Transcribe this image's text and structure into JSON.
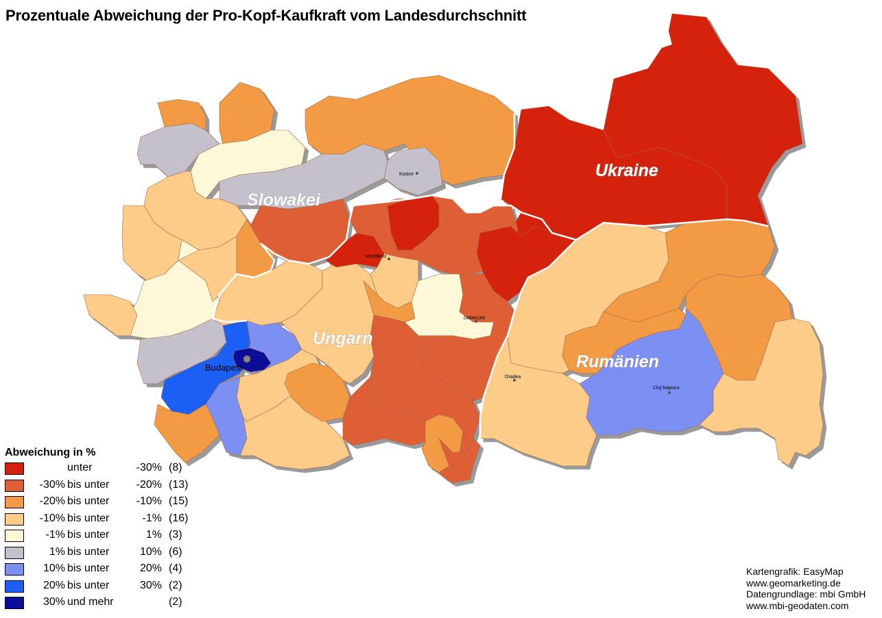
{
  "title": "Prozentuale Abweichung der Pro-Kopf-Kaufkraft vom Landesdurchschnitt",
  "countries": [
    {
      "name": "Ukraine"
    },
    {
      "name": "Slowakei"
    },
    {
      "name": "Ungarn"
    },
    {
      "name": "Rumänien"
    }
  ],
  "cities": [
    {
      "name": "Kosice"
    },
    {
      "name": "Mischkolz"
    },
    {
      "name": "Debreczin"
    },
    {
      "name": "Oradea"
    },
    {
      "name": "Cluj-Napoca"
    },
    {
      "name": "Budapest"
    }
  ],
  "legend": {
    "title": "Abweichung in %",
    "classes": [
      {
        "from": "",
        "relation": "unter",
        "to": "-30%",
        "count": "(8)",
        "color": "#d42010"
      },
      {
        "from": "-30%",
        "relation": "bis unter",
        "to": "-20%",
        "count": "(13)",
        "color": "#de5e36"
      },
      {
        "from": "-20%",
        "relation": "bis unter",
        "to": "-10%",
        "count": "(15)",
        "color": "#f39a45"
      },
      {
        "from": "-10%",
        "relation": "bis unter",
        "to": "-1%",
        "count": "(16)",
        "color": "#fdcc88"
      },
      {
        "from": "-1%",
        "relation": "bis unter",
        "to": "1%",
        "count": "(3)",
        "color": "#fff8d8"
      },
      {
        "from": "1%",
        "relation": "bis unter",
        "to": "10%",
        "count": "(6)",
        "color": "#c4c0cc"
      },
      {
        "from": "10%",
        "relation": "bis unter",
        "to": "20%",
        "count": "(4)",
        "color": "#7b8ff2"
      },
      {
        "from": "20%",
        "relation": "bis unter",
        "to": "30%",
        "count": "(2)",
        "color": "#1f5ef5"
      },
      {
        "from": "30%",
        "relation": "und mehr",
        "to": "",
        "count": "(2)",
        "color": "#0c0c9a"
      }
    ]
  },
  "credits": [
    "Kartengrafik: EasyMap",
    "www.geomarketing.de",
    "Datengrundlage: mbi GmbH",
    "www.mbi-geodaten.com"
  ]
}
